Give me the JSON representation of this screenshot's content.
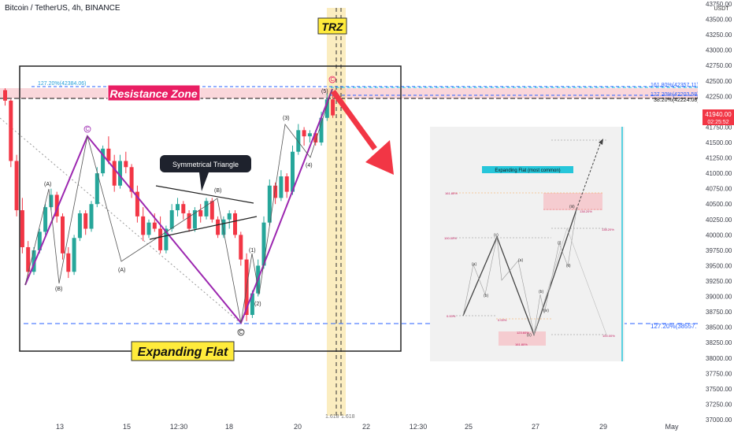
{
  "header": {
    "title": "Bitcoin / TetherUS, 4h, BINANCE",
    "currency": "USDT"
  },
  "price_badge": {
    "price": "41940.00",
    "countdown": "02:25:52",
    "color": "#f23645"
  },
  "price_axis": {
    "labels": [
      "43750.00",
      "43500.00",
      "43250.00",
      "43000.00",
      "42750.00",
      "42500.00",
      "42250.00",
      "42000.00",
      "41750.00",
      "41500.00",
      "41250.00",
      "41000.00",
      "40750.00",
      "40500.00",
      "40250.00",
      "40000.00",
      "39750.00",
      "39500.00",
      "39250.00",
      "39000.00",
      "38750.00",
      "38500.00",
      "38250.00",
      "38000.00",
      "37750.00",
      "37500.00",
      "37250.00",
      "37000.00"
    ]
  },
  "time_axis": {
    "labels": [
      "13",
      "15",
      "12:30",
      "18",
      "20",
      "22",
      "12:30",
      "25",
      "27",
      "29",
      "May"
    ]
  },
  "levels": {
    "ext_127_left": "127.20%(42384.06)",
    "fib_1618": "161.80%(42357.11)",
    "fib_1272": "127.20%(42203.58)",
    "fib_382": "38.20%(42224.08)",
    "ext_127_bottom": "127.20%(38557.72)",
    "trz_fib": "1.618",
    "trz_fib_right": "1.618"
  },
  "annotations": {
    "resistance": "Resistance Zone",
    "trz": "TRZ",
    "expanding_flat": "Expanding Flat",
    "symmetrical_triangle": "Symmetrical Triangle",
    "inset_title": "Expanding Flat (most common)"
  },
  "waves": {
    "A_top": "(A)",
    "B_left": "(B)",
    "A_mid": "(A)",
    "B_mid": "(B)",
    "C_top": "C",
    "C_bottom": "C",
    "C_final": "C",
    "w1": "(1)",
    "w2": "(2)",
    "w3": "(3)",
    "w4": "(4)",
    "w5": "(5)"
  },
  "inset": {
    "labels": [
      "(a)",
      "(b)",
      "(c)",
      "(a)",
      "(b)",
      "(c)",
      "(i)",
      "(ii)",
      "(iii)",
      "(iv)",
      "(v)"
    ],
    "pct": [
      "161.80%",
      "138.20%",
      "100.00%",
      "0.00%",
      "0.00%",
      "100.00%",
      "123.60%",
      "161.80%",
      "138.20%"
    ]
  },
  "colors": {
    "up": "#26a69a",
    "down": "#f23645",
    "purple": "#9c27b0",
    "blue_dash": "#2962ff",
    "trz": "#f7d774",
    "resistance": "#f8c9cf",
    "annotation_yellow": "#ffeb3b",
    "arrow_red": "#f23645"
  },
  "chart_data": {
    "type": "candlestick",
    "xlabel": "",
    "ylabel": "",
    "ylim": [
      37000,
      43750
    ],
    "candles": [
      [
        42350,
        42380,
        42100,
        42180
      ],
      [
        42180,
        42200,
        41100,
        41200
      ],
      [
        41200,
        41300,
        40300,
        40400
      ],
      [
        40400,
        40600,
        39700,
        39800
      ],
      [
        39800,
        39900,
        39300,
        39400
      ],
      [
        39400,
        39800,
        39350,
        39750
      ],
      [
        39750,
        40100,
        39700,
        40050
      ],
      [
        40050,
        40500,
        40000,
        40450
      ],
      [
        40450,
        40750,
        40400,
        40650
      ],
      [
        40650,
        40700,
        40200,
        40300
      ],
      [
        40300,
        40350,
        39600,
        39700
      ],
      [
        39700,
        39800,
        39300,
        39400
      ],
      [
        39400,
        40000,
        39350,
        39950
      ],
      [
        39950,
        40400,
        39900,
        40350
      ],
      [
        40350,
        40400,
        40000,
        40100
      ],
      [
        40100,
        40550,
        40050,
        40500
      ],
      [
        40500,
        41100,
        40450,
        41000
      ],
      [
        41000,
        41450,
        40950,
        41400
      ],
      [
        41400,
        41600,
        41150,
        41200
      ],
      [
        41200,
        41300,
        40700,
        40800
      ],
      [
        40800,
        41300,
        40750,
        41200
      ],
      [
        41200,
        41350,
        41000,
        41100
      ],
      [
        41100,
        41150,
        40600,
        40700
      ],
      [
        40700,
        40800,
        40200,
        40300
      ],
      [
        40300,
        40450,
        39900,
        40000
      ],
      [
        40000,
        40250,
        39950,
        40200
      ],
      [
        40200,
        40350,
        40050,
        40100
      ],
      [
        40100,
        40300,
        39700,
        39750
      ],
      [
        39750,
        40150,
        39700,
        40100
      ],
      [
        40100,
        40500,
        40050,
        40400
      ],
      [
        40400,
        40600,
        40300,
        40500
      ],
      [
        40500,
        40550,
        40250,
        40350
      ],
      [
        40350,
        40400,
        40050,
        40100
      ],
      [
        40100,
        40450,
        40050,
        40400
      ],
      [
        40400,
        40500,
        40200,
        40300
      ],
      [
        40300,
        40600,
        40250,
        40550
      ],
      [
        40550,
        40600,
        40200,
        40250
      ],
      [
        40250,
        40300,
        39950,
        40000
      ],
      [
        40000,
        40300,
        39950,
        40250
      ],
      [
        40250,
        40400,
        40100,
        40350
      ],
      [
        40350,
        40400,
        39950,
        40000
      ],
      [
        40000,
        40050,
        39500,
        39600
      ],
      [
        39600,
        39700,
        38600,
        38700
      ],
      [
        38700,
        39100,
        38650,
        39050
      ],
      [
        39050,
        39600,
        39000,
        39500
      ],
      [
        39500,
        40300,
        39450,
        40200
      ],
      [
        40200,
        40900,
        40150,
        40800
      ],
      [
        40800,
        40850,
        40500,
        40600
      ],
      [
        40600,
        41050,
        40550,
        40950
      ],
      [
        40950,
        41000,
        40600,
        40700
      ],
      [
        40700,
        41450,
        40650,
        41350
      ],
      [
        41350,
        41800,
        41300,
        41700
      ],
      [
        41700,
        41750,
        41450,
        41600
      ],
      [
        41600,
        41700,
        41500,
        41650
      ],
      [
        41650,
        41700,
        41450,
        41500
      ],
      [
        41500,
        42000,
        41450,
        41900
      ],
      [
        41900,
        42300,
        41850,
        42200
      ],
      [
        42200,
        42330,
        41900,
        41940
      ]
    ]
  }
}
